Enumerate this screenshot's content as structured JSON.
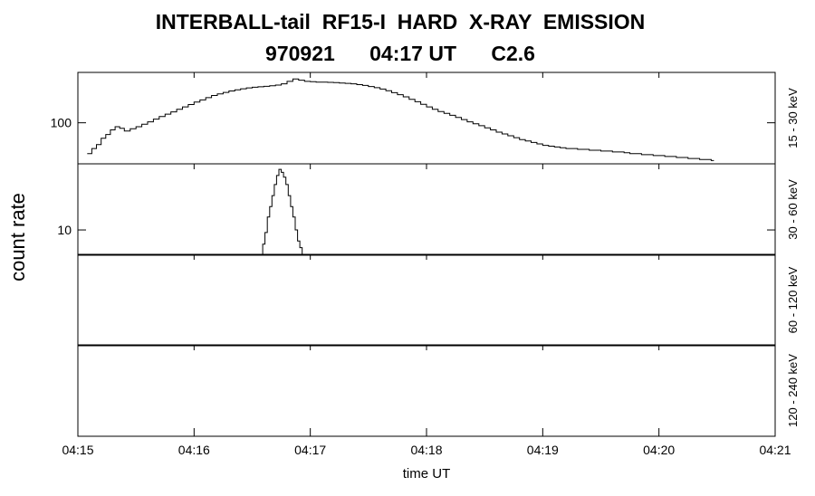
{
  "title_line1": "INTERBALL-tail  RF15-I  HARD  X-RAY  EMISSION",
  "title_line2": "970921      04:17 UT      C2.6",
  "chart_data": {
    "type": "line",
    "ylabel": "count rate",
    "xlabel": "time UT",
    "x_ticks": [
      "04:15",
      "04:16",
      "04:17",
      "04:18",
      "04:19",
      "04:20",
      "04:21"
    ],
    "x_range_minutes": [
      0,
      6
    ],
    "grid": false,
    "panels": [
      {
        "label": "15 - 30 keV",
        "y_scale": "log",
        "ylim": [
          42,
          290
        ],
        "y_tick_label": "100",
        "y_tick_value": 100,
        "points": [
          [
            0.08,
            52
          ],
          [
            0.12,
            58
          ],
          [
            0.16,
            63
          ],
          [
            0.2,
            72
          ],
          [
            0.24,
            78
          ],
          [
            0.28,
            86
          ],
          [
            0.32,
            92
          ],
          [
            0.36,
            89
          ],
          [
            0.4,
            84
          ],
          [
            0.45,
            88
          ],
          [
            0.5,
            92
          ],
          [
            0.55,
            97
          ],
          [
            0.6,
            102
          ],
          [
            0.65,
            108
          ],
          [
            0.7,
            114
          ],
          [
            0.75,
            120
          ],
          [
            0.8,
            126
          ],
          [
            0.85,
            133
          ],
          [
            0.9,
            140
          ],
          [
            0.95,
            147
          ],
          [
            1.0,
            155
          ],
          [
            1.05,
            162
          ],
          [
            1.1,
            170
          ],
          [
            1.15,
            178
          ],
          [
            1.2,
            184
          ],
          [
            1.25,
            190
          ],
          [
            1.3,
            196
          ],
          [
            1.35,
            201
          ],
          [
            1.4,
            205
          ],
          [
            1.45,
            209
          ],
          [
            1.5,
            212
          ],
          [
            1.55,
            214
          ],
          [
            1.6,
            216
          ],
          [
            1.65,
            219
          ],
          [
            1.7,
            222
          ],
          [
            1.75,
            228
          ],
          [
            1.8,
            240
          ],
          [
            1.85,
            252
          ],
          [
            1.9,
            246
          ],
          [
            1.95,
            240
          ],
          [
            2.0,
            238
          ],
          [
            2.05,
            236
          ],
          [
            2.1,
            236
          ],
          [
            2.15,
            235
          ],
          [
            2.2,
            234
          ],
          [
            2.25,
            232
          ],
          [
            2.3,
            230
          ],
          [
            2.35,
            228
          ],
          [
            2.4,
            224
          ],
          [
            2.45,
            220
          ],
          [
            2.5,
            215
          ],
          [
            2.55,
            210
          ],
          [
            2.6,
            204
          ],
          [
            2.65,
            197
          ],
          [
            2.7,
            189
          ],
          [
            2.75,
            181
          ],
          [
            2.8,
            173
          ],
          [
            2.85,
            164
          ],
          [
            2.9,
            156
          ],
          [
            2.95,
            148
          ],
          [
            3.0,
            140
          ],
          [
            3.05,
            133
          ],
          [
            3.1,
            127
          ],
          [
            3.15,
            122
          ],
          [
            3.2,
            117
          ],
          [
            3.25,
            112
          ],
          [
            3.3,
            107
          ],
          [
            3.35,
            102
          ],
          [
            3.4,
            98
          ],
          [
            3.45,
            94
          ],
          [
            3.5,
            90
          ],
          [
            3.55,
            86
          ],
          [
            3.6,
            82
          ],
          [
            3.65,
            79
          ],
          [
            3.7,
            76
          ],
          [
            3.75,
            73
          ],
          [
            3.8,
            70
          ],
          [
            3.85,
            68
          ],
          [
            3.9,
            66
          ],
          [
            3.95,
            64
          ],
          [
            4.0,
            62
          ],
          [
            4.05,
            61
          ],
          [
            4.1,
            60
          ],
          [
            4.15,
            59
          ],
          [
            4.2,
            58
          ],
          [
            4.25,
            58
          ],
          [
            4.3,
            57
          ],
          [
            4.35,
            57
          ],
          [
            4.4,
            56
          ],
          [
            4.45,
            56
          ],
          [
            4.5,
            55
          ],
          [
            4.55,
            55
          ],
          [
            4.6,
            54
          ],
          [
            4.65,
            54
          ],
          [
            4.7,
            53
          ],
          [
            4.75,
            52
          ],
          [
            4.8,
            52
          ],
          [
            4.85,
            51
          ],
          [
            4.9,
            51
          ],
          [
            4.95,
            50
          ],
          [
            5.0,
            50
          ],
          [
            5.05,
            49
          ],
          [
            5.1,
            49
          ],
          [
            5.15,
            48
          ],
          [
            5.2,
            48
          ],
          [
            5.25,
            47
          ],
          [
            5.3,
            47
          ],
          [
            5.35,
            46
          ],
          [
            5.4,
            46
          ],
          [
            5.45,
            45
          ]
        ]
      },
      {
        "label": "30 - 60 keV",
        "y_scale": "log",
        "ylim": [
          6,
          38
        ],
        "y_tick_label": "10",
        "y_tick_value": 10,
        "points": [
          [
            1.57,
            6
          ],
          [
            1.59,
            7.5
          ],
          [
            1.61,
            9.5
          ],
          [
            1.63,
            13
          ],
          [
            1.65,
            16
          ],
          [
            1.67,
            20
          ],
          [
            1.69,
            25
          ],
          [
            1.71,
            30
          ],
          [
            1.73,
            34
          ],
          [
            1.75,
            32
          ],
          [
            1.77,
            29
          ],
          [
            1.79,
            25
          ],
          [
            1.81,
            20
          ],
          [
            1.83,
            16
          ],
          [
            1.85,
            13
          ],
          [
            1.87,
            10
          ],
          [
            1.89,
            8
          ],
          [
            1.91,
            7
          ],
          [
            1.93,
            6
          ]
        ]
      },
      {
        "label": "60 - 120 keV",
        "y_scale": "log",
        "points": []
      },
      {
        "label": "120 - 240 keV",
        "y_scale": "log",
        "points": []
      }
    ]
  }
}
